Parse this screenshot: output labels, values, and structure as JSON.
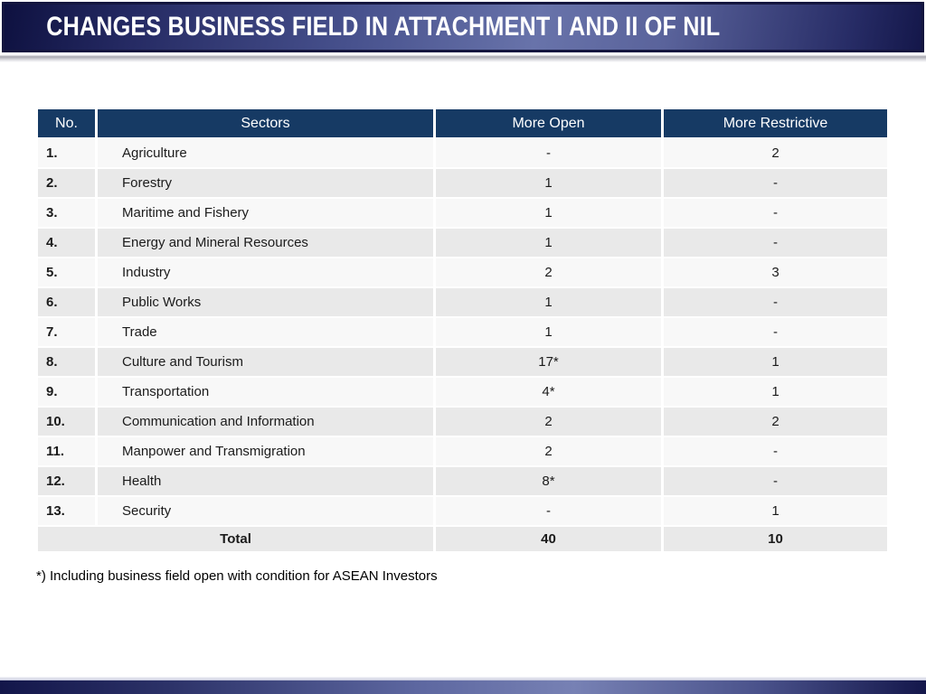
{
  "slide_title": "CHANGES BUSINESS FIELD IN ATTACHMENT I AND II OF NIL",
  "footnote": "*) Including business field open with condition for ASEAN Investors",
  "colors": {
    "header_bg": "#163A64",
    "row_odd": "#F8F8F8",
    "row_even": "#E9E9E9",
    "title_bar_dark": "#14174A",
    "title_bar_light": "#6C76AD",
    "text_dark": "#1B1B1B"
  },
  "table": {
    "headers": [
      "No.",
      "Sectors",
      "More Open",
      "More Restrictive"
    ],
    "rows": [
      {
        "no": "1.",
        "sector": "Agriculture",
        "more_open": "-",
        "more_restrictive": "2"
      },
      {
        "no": "2.",
        "sector": "Forestry",
        "more_open": "1",
        "more_restrictive": "-"
      },
      {
        "no": "3.",
        "sector": "Maritime and Fishery",
        "more_open": "1",
        "more_restrictive": "-"
      },
      {
        "no": "4.",
        "sector": "Energy and Mineral Resources",
        "more_open": "1",
        "more_restrictive": "-"
      },
      {
        "no": "5.",
        "sector": "Industry",
        "more_open": "2",
        "more_restrictive": "3"
      },
      {
        "no": "6.",
        "sector": "Public Works",
        "more_open": "1",
        "more_restrictive": "-"
      },
      {
        "no": "7.",
        "sector": "Trade",
        "more_open": "1",
        "more_restrictive": "-"
      },
      {
        "no": "8.",
        "sector": "Culture and Tourism",
        "more_open": "17*",
        "more_restrictive": "1"
      },
      {
        "no": "9.",
        "sector": "Transportation",
        "more_open": "4*",
        "more_restrictive": "1"
      },
      {
        "no": "10.",
        "sector": "Communication and Information",
        "more_open": "2",
        "more_restrictive": "2"
      },
      {
        "no": "11.",
        "sector": "Manpower and Transmigration",
        "more_open": "2",
        "more_restrictive": "-"
      },
      {
        "no": "12.",
        "sector": "Health",
        "more_open": "8*",
        "more_restrictive": "-"
      },
      {
        "no": "13.",
        "sector": "Security",
        "more_open": "-",
        "more_restrictive": "1"
      }
    ],
    "total": {
      "label": "Total",
      "more_open": "40",
      "more_restrictive": "10"
    }
  }
}
